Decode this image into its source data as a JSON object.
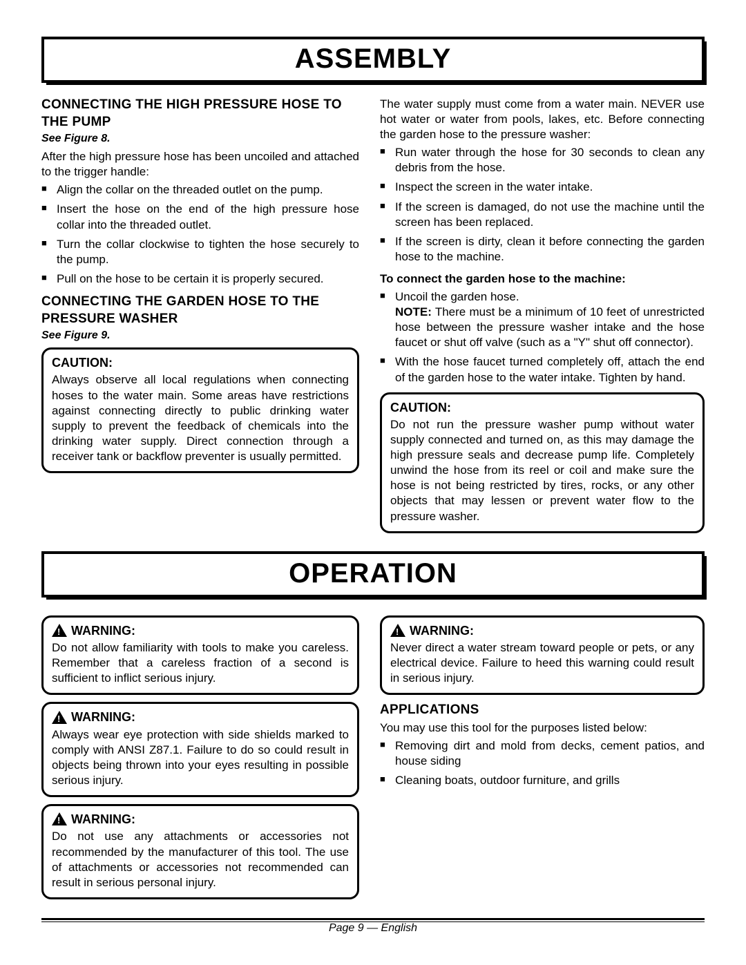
{
  "sections": {
    "assembly": "ASSEMBLY",
    "operation": "OPERATION"
  },
  "assembly": {
    "left": {
      "h1": "CONNECTING THE HIGH PRESSURE HOSE TO THE PUMP",
      "see1": "See Figure 8.",
      "intro1": "After the high pressure hose has been uncoiled and attached to the trigger handle:",
      "list1": [
        "Align the collar on the threaded outlet on the pump.",
        "Insert the hose on the end of the high pressure hose collar into the threaded outlet.",
        "Turn the collar clockwise to tighten the hose securely to the pump.",
        "Pull on the hose to be certain it is properly secured."
      ],
      "h2": "CONNECTING THE GARDEN HOSE TO THE PRESSURE WASHER",
      "see2": "See Figure 9.",
      "caution1_title": "CAUTION:",
      "caution1_body": "Always observe all local regulations when connecting hoses to the water main. Some areas have restrictions against connecting directly to public drinking water supply to prevent the feedback of chemicals into the drinking water supply. Direct connection through a receiver tank or backflow preventer is usually permitted."
    },
    "right": {
      "intro": "The water supply must come from a water main. NEVER use hot water or water from pools, lakes, etc. Before connecting the garden hose to the pressure washer:",
      "list_pre": [
        "Run water through the hose for 30 seconds to clean any debris from the hose.",
        "Inspect the screen in the water intake.",
        "If the screen is damaged, do not use the machine until the screen has been replaced.",
        "If the screen is dirty, clean it before connecting the garden hose to the machine."
      ],
      "sub_bold": "To connect the garden hose to the machine:",
      "list_post_first": "Uncoil the garden hose.",
      "note_label": "NOTE:",
      "note_body": " There must be a minimum of 10 feet of unrestricted hose between the pressure washer intake and the hose faucet or shut off valve (such as a \"Y\" shut off connector).",
      "list_post_last": "With the hose faucet turned completely off, attach the end of the garden hose to the water intake. Tighten by hand.",
      "caution2_title": "CAUTION:",
      "caution2_body": "Do not run the pressure washer pump without water supply connected and turned on, as this may damage the high pressure seals and decrease pump life. Completely unwind the hose from its reel or coil and make sure the hose is not being restricted by tires, rocks, or any other objects that may lessen or prevent water flow to the pressure washer."
    }
  },
  "operation": {
    "left": {
      "w1_title": "WARNING:",
      "w1_body": "Do not allow familiarity with tools to make you careless. Remember that a careless fraction of a second is sufficient to inflict serious injury.",
      "w2_title": "WARNING:",
      "w2_body": "Always wear eye protection with side shields marked to comply with ANSI Z87.1. Failure to do so could result in objects being thrown into your eyes resulting in possible serious injury.",
      "w3_title": "WARNING:",
      "w3_body": "Do not use any attachments or accessories not recommended by the manufacturer of this tool. The use of attachments or accessories not recommended can result in serious personal injury."
    },
    "right": {
      "w4_title": "WARNING:",
      "w4_body": "Never direct a water stream toward people or pets, or any electrical device. Failure to heed this warning could result in serious injury.",
      "apps_h": "APPLICATIONS",
      "apps_intro": "You may use this tool for the purposes listed below:",
      "apps_list": [
        "Removing dirt and mold from decks, cement patios, and house siding",
        "Cleaning boats, outdoor furniture, and grills"
      ]
    }
  },
  "footer": "Page 9  — English"
}
